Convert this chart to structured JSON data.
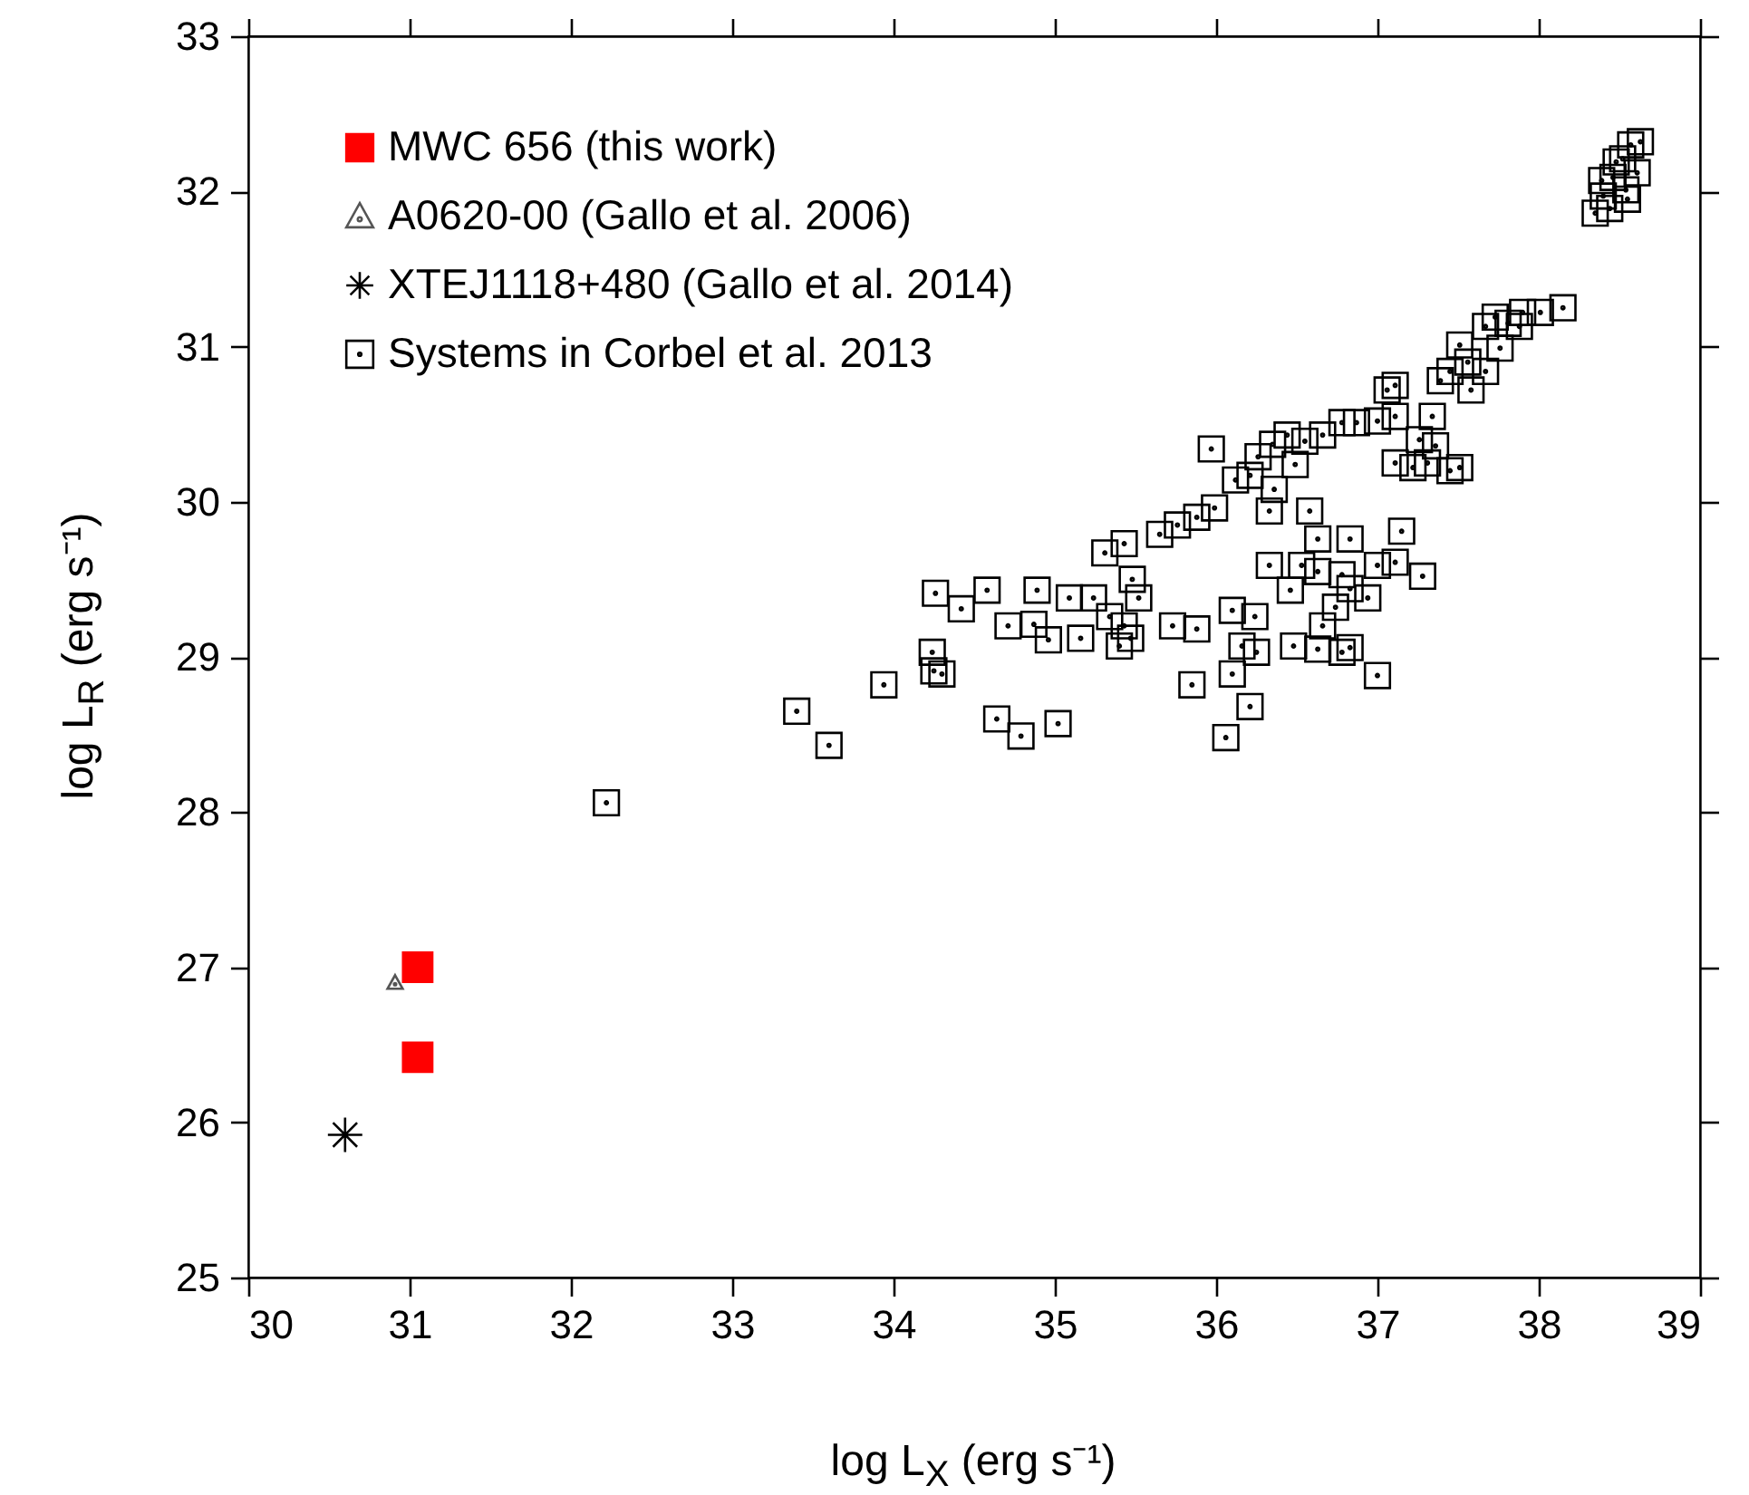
{
  "chart_data": {
    "type": "scatter",
    "xlabel": "log L$_{X}$ (erg s⁻¹)",
    "ylabel": "log L$_{R}$ (erg s⁻¹)",
    "xlim": [
      30,
      39
    ],
    "ylim": [
      25,
      33
    ],
    "xticks": [
      30,
      31,
      32,
      33,
      34,
      35,
      36,
      37,
      38,
      39
    ],
    "yticks": [
      25,
      26,
      27,
      28,
      29,
      30,
      31,
      32,
      33
    ],
    "grid": false,
    "legend": "top left",
    "series": [
      {
        "name": "MWC 656 (this work)",
        "color": "#ff0000",
        "marker": "square",
        "x": [
          31.05,
          31.05
        ],
        "values": [
          27.0,
          26.42
        ]
      },
      {
        "name": "A0620-00 (Gallo et al. 2006)",
        "color": "#555555",
        "marker": "triangle",
        "x": [
          30.91
        ],
        "values": [
          26.9
        ]
      },
      {
        "name": "XTEJ1118+480 (Gallo et al. 2014)",
        "color": "#000000",
        "marker": "cross",
        "x": [
          30.6
        ],
        "values": [
          25.92
        ]
      },
      {
        "name": "Systems in Corbel et al. 2013",
        "color": "#000000",
        "marker": "square",
        "x": [
          32.22,
          33.4,
          33.6,
          33.94,
          34.24,
          34.25,
          34.3,
          34.26,
          34.42,
          34.58,
          34.71,
          34.87,
          34.89,
          34.96,
          34.64,
          34.79,
          35.02,
          35.09,
          35.16,
          35.31,
          35.43,
          35.48,
          35.52,
          35.43,
          35.34,
          35.24,
          35.47,
          35.4,
          35.73,
          35.88,
          35.85,
          36.1,
          36.06,
          36.21,
          36.1,
          36.16,
          36.25,
          35.65,
          35.76,
          35.88,
          35.99,
          35.97,
          36.12,
          36.21,
          36.26,
          36.35,
          36.44,
          36.55,
          36.66,
          36.78,
          36.87,
          37.0,
          37.11,
          37.11,
          37.06,
          36.49,
          36.36,
          36.33,
          37.11,
          37.22,
          37.31,
          37.45,
          37.51,
          37.36,
          36.58,
          36.63,
          36.83,
          36.53,
          36.63,
          36.78,
          36.83,
          36.74,
          36.66,
          36.63,
          36.83,
          37.0,
          37.11,
          37.28,
          37.15,
          37.0,
          36.78,
          36.48,
          36.24,
          36.46,
          36.33,
          36.94,
          37.34,
          37.39,
          37.45,
          37.56,
          37.51,
          37.58,
          37.67,
          37.76,
          37.67,
          37.73,
          37.81,
          37.88,
          37.9,
          38.01,
          38.15,
          37.26,
          38.35,
          38.4,
          38.46,
          38.52,
          38.57,
          38.63,
          38.61,
          38.54,
          38.44,
          38.39,
          38.48,
          38.55
        ],
        "values": [
          28.06,
          28.65,
          28.43,
          28.82,
          29.03,
          28.91,
          28.89,
          29.41,
          29.31,
          29.43,
          29.2,
          29.21,
          29.43,
          29.11,
          28.6,
          28.49,
          28.57,
          29.38,
          29.12,
          29.67,
          29.73,
          29.5,
          29.38,
          29.2,
          29.26,
          29.38,
          29.12,
          29.07,
          29.2,
          29.18,
          28.82,
          28.89,
          28.48,
          28.68,
          29.3,
          29.07,
          29.03,
          29.79,
          29.85,
          29.9,
          29.96,
          30.34,
          30.14,
          30.17,
          30.29,
          30.37,
          30.43,
          30.39,
          30.43,
          30.51,
          30.51,
          30.52,
          30.55,
          30.75,
          30.72,
          30.24,
          30.08,
          29.94,
          30.25,
          30.22,
          30.25,
          30.2,
          30.22,
          30.36,
          29.94,
          29.76,
          29.76,
          29.59,
          29.55,
          29.53,
          29.44,
          29.32,
          29.2,
          29.05,
          29.06,
          29.59,
          29.61,
          29.52,
          29.81,
          28.88,
          29.03,
          29.07,
          29.26,
          29.43,
          29.59,
          29.38,
          30.55,
          30.78,
          30.84,
          30.9,
          31.01,
          30.72,
          30.84,
          30.99,
          31.13,
          31.19,
          31.15,
          31.13,
          31.22,
          31.22,
          31.25,
          30.4,
          31.86,
          31.97,
          32.09,
          32.21,
          32.3,
          32.32,
          32.12,
          32.01,
          31.89,
          32.07,
          32.19,
          31.95
        ]
      }
    ]
  }
}
